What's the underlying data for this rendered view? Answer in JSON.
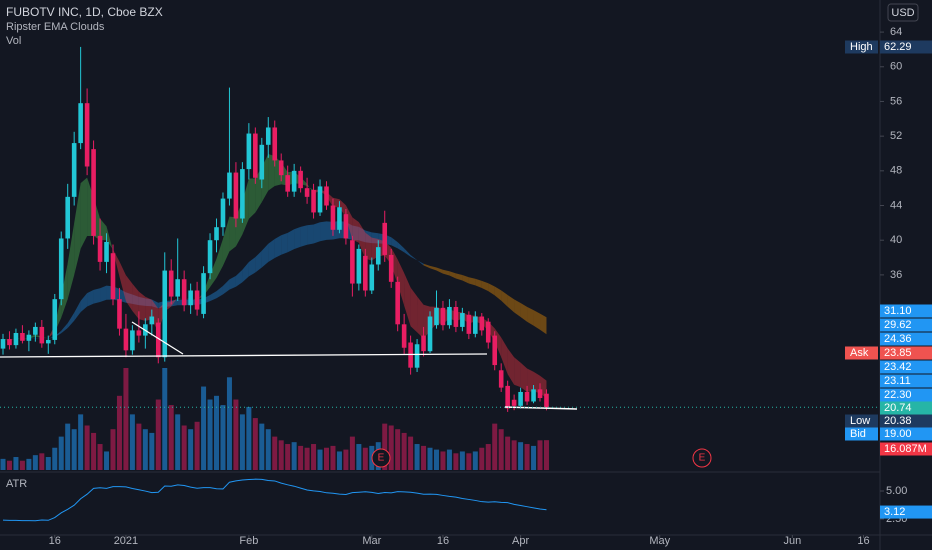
{
  "chart_data": {
    "type": "candlestick",
    "title": "FUBOTV INC, 1D, Cboe BZX",
    "indicators": [
      "Ripster EMA Clouds",
      "Vol"
    ],
    "currency": "USD",
    "up_color": "#22c7d6",
    "down_color": "#e91e63",
    "ohlc": [
      [
        27.5,
        29.2,
        26.8,
        28.6
      ],
      [
        28.6,
        29.5,
        27.4,
        27.9
      ],
      [
        27.9,
        29.8,
        27.5,
        29.3
      ],
      [
        29.3,
        30.2,
        28.1,
        28.4
      ],
      [
        28.4,
        29.6,
        27.2,
        29.1
      ],
      [
        29.1,
        30.5,
        28.3,
        30
      ],
      [
        30,
        30.8,
        27.6,
        28.1
      ],
      [
        28.1,
        29,
        26.9,
        28.5
      ],
      [
        28.5,
        33.8,
        28,
        33.2
      ],
      [
        33.2,
        41,
        32.5,
        40.2
      ],
      [
        40.2,
        46.5,
        39,
        45
      ],
      [
        45,
        52.5,
        44,
        51.2
      ],
      [
        51.2,
        62.29,
        50.5,
        55.8
      ],
      [
        55.8,
        57.5,
        47.5,
        48.5
      ],
      [
        50.5,
        51.5,
        39.5,
        40.5
      ],
      [
        40.5,
        42.5,
        36.5,
        37.5
      ],
      [
        37.5,
        40.8,
        36.2,
        39.8
      ],
      [
        38.5,
        39.5,
        32.5,
        33.2
      ],
      [
        33.2,
        34.5,
        29,
        29.8
      ],
      [
        29.8,
        31.5,
        26.5,
        27.3
      ],
      [
        27.3,
        30.2,
        26.8,
        29.6
      ],
      [
        29.6,
        31.8,
        28.2,
        29
      ],
      [
        29,
        31,
        27.5,
        30.3
      ],
      [
        30.3,
        32,
        29,
        31.2
      ],
      [
        30.5,
        31,
        25.8,
        26.5
      ],
      [
        26.5,
        38.6,
        26,
        36.5
      ],
      [
        36.5,
        37.8,
        32.6,
        33.5
      ],
      [
        33.5,
        40.2,
        33,
        35.5
      ],
      [
        35.5,
        36.5,
        31.8,
        32.5
      ],
      [
        32.5,
        35,
        31.5,
        34.2
      ],
      [
        34.2,
        35.2,
        31.3,
        32
      ],
      [
        31.5,
        37,
        31,
        36.2
      ],
      [
        36.2,
        40.8,
        35.5,
        40
      ],
      [
        40,
        42.5,
        38.6,
        41.5
      ],
      [
        41.5,
        45.5,
        40.5,
        44.8
      ],
      [
        44.8,
        57.6,
        44,
        47.8
      ],
      [
        47.8,
        49,
        41.5,
        42.5
      ],
      [
        42.5,
        49,
        42,
        48.2
      ],
      [
        48.2,
        53.5,
        47,
        52.3
      ],
      [
        52.3,
        53,
        46.5,
        47.2
      ],
      [
        47,
        51.8,
        46,
        51
      ],
      [
        51,
        54.2,
        49.5,
        53
      ],
      [
        53,
        53.8,
        48.5,
        49.2
      ],
      [
        49.2,
        50,
        46.8,
        47.5
      ],
      [
        47.5,
        48.6,
        45,
        45.6
      ],
      [
        45.6,
        48.8,
        45,
        48
      ],
      [
        48,
        48.5,
        45.5,
        46
      ],
      [
        46,
        47.2,
        44.2,
        45
      ],
      [
        45.8,
        46.5,
        42.5,
        43.2
      ],
      [
        43.2,
        47,
        42.8,
        46.2
      ],
      [
        46.2,
        46.8,
        43.5,
        44
      ],
      [
        44,
        44.8,
        40.5,
        41.2
      ],
      [
        41.2,
        44.5,
        40.8,
        43.8
      ],
      [
        43,
        43.6,
        39.5,
        40.2
      ],
      [
        40,
        40.5,
        33.5,
        35
      ],
      [
        35,
        39.5,
        34.2,
        39
      ],
      [
        38.2,
        39,
        33.5,
        34.2
      ],
      [
        34.2,
        38,
        33.8,
        37.2
      ],
      [
        37.2,
        40,
        36.5,
        39.2
      ],
      [
        42,
        43.4,
        37.5,
        38.3
      ],
      [
        38.3,
        39,
        34.5,
        35.2
      ],
      [
        35.2,
        35.8,
        29.5,
        30.3
      ],
      [
        30.3,
        31.5,
        26.8,
        27.6
      ],
      [
        28.2,
        29,
        24.5,
        25.3
      ],
      [
        25.3,
        28.6,
        24.8,
        28
      ],
      [
        29,
        30,
        26.6,
        27.2
      ],
      [
        27.2,
        31.8,
        27,
        31.2
      ],
      [
        30.2,
        34.2,
        29.8,
        32.2
      ],
      [
        32.2,
        33,
        29.6,
        30.2
      ],
      [
        30.2,
        33.2,
        29.8,
        32.3
      ],
      [
        32.3,
        33,
        29.4,
        30
      ],
      [
        30,
        32.2,
        29.5,
        31.6
      ],
      [
        31.4,
        31.8,
        28.6,
        29.2
      ],
      [
        29.2,
        31.8,
        28.8,
        31.2
      ],
      [
        31.2,
        31.6,
        29,
        29.6
      ],
      [
        30.6,
        31,
        27.5,
        28.2
      ],
      [
        29,
        29.5,
        25,
        25.6
      ],
      [
        25,
        25.8,
        22.5,
        23
      ],
      [
        23.2,
        23.8,
        20.2,
        20.6
      ],
      [
        21.6,
        22.2,
        20.4,
        20.9
      ],
      [
        20.9,
        23,
        20.6,
        22.5
      ],
      [
        22.5,
        23.2,
        21,
        21.4
      ],
      [
        21.4,
        23.3,
        21.2,
        22.8
      ],
      [
        22.8,
        23.5,
        21.4,
        21.8
      ],
      [
        22.3,
        22.8,
        20.38,
        20.74
      ]
    ],
    "volume": [
      6,
      5,
      7,
      5,
      6,
      8,
      9,
      7,
      12,
      18,
      25,
      22,
      30,
      24,
      20,
      14,
      10,
      22,
      40,
      55,
      30,
      25,
      22,
      20,
      38,
      55,
      35,
      30,
      24,
      22,
      26,
      45,
      38,
      40,
      35,
      50,
      38,
      30,
      34,
      28,
      25,
      22,
      18,
      16,
      14,
      15,
      13,
      12,
      14,
      11,
      12,
      13,
      10,
      11,
      18,
      14,
      12,
      13,
      15,
      25,
      24,
      22,
      20,
      18,
      14,
      13,
      12,
      11,
      10,
      11,
      9,
      10,
      9,
      10,
      12,
      14,
      25,
      22,
      18,
      16,
      15,
      14,
      13,
      16,
      16.087
    ],
    "volume_label": {
      "value": 16.087,
      "label": "16.087M",
      "color": "#f23645"
    },
    "ylim": [
      13.5,
      67.7
    ],
    "yticks": [
      36,
      40,
      44,
      48,
      52,
      56,
      60,
      64
    ],
    "xticks": [
      {
        "value": 8,
        "label": "16"
      },
      {
        "value": 19,
        "label": "2021"
      },
      {
        "value": 38,
        "label": "Feb"
      },
      {
        "value": 57,
        "label": "Mar"
      },
      {
        "value": 68,
        "label": "16"
      },
      {
        "value": 80,
        "label": "Apr"
      },
      {
        "value": 101.5,
        "label": "May"
      },
      {
        "value": 122,
        "label": "Jun"
      },
      {
        "value": 133,
        "label": "16"
      }
    ],
    "grid": false,
    "price_labels": [
      {
        "name": "High",
        "value": 62.29,
        "label": "62.29",
        "color": "#1e3a5f"
      },
      {
        "value": 31.1,
        "label": "31.10",
        "color": "#2196f3"
      },
      {
        "value": 29.62,
        "label": "29.62",
        "color": "#2196f3"
      },
      {
        "value": 24.36,
        "label": "24.36",
        "color": "#2196f3"
      },
      {
        "name": "Ask",
        "value": 23.85,
        "label": "23.85",
        "color": "#ef5350"
      },
      {
        "value": 23.42,
        "label": "23.42",
        "color": "#2196f3"
      },
      {
        "value": 23.11,
        "label": "23.11",
        "color": "#2196f3"
      },
      {
        "value": 22.3,
        "label": "22.30",
        "color": "#2196f3"
      },
      {
        "value": 20.74,
        "label": "20.74",
        "color": "#26b5a6"
      },
      {
        "name": "Low",
        "value": 20.38,
        "label": "20.38",
        "color": "#1e3a5f"
      },
      {
        "name": "Bid",
        "value": 19,
        "label": "19.00",
        "color": "#2196f3"
      }
    ],
    "earnings": [
      "E",
      "E"
    ],
    "atr": {
      "title": "ATR",
      "ylim": [
        1.07,
        6.43
      ],
      "yticks": [
        {
          "value": 5,
          "label": "5.00"
        },
        {
          "value": 2.5,
          "label": "2.50"
        }
      ],
      "last": {
        "value": 3.12,
        "label": "3.12"
      },
      "color": "#2196f3"
    }
  }
}
